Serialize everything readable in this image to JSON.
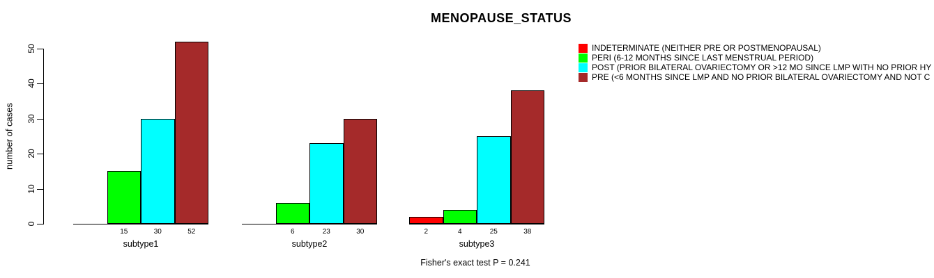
{
  "title": "MENOPAUSE_STATUS",
  "y_axis_label": "number of cases",
  "footer_annotation": "Fisher's exact test P = 0.241",
  "legend": {
    "position": "right",
    "items": [
      {
        "label": "INDETERMINATE (NEITHER PRE OR POSTMENOPAUSAL)",
        "color": "#ff0000"
      },
      {
        "label": "PERI (6-12 MONTHS SINCE LAST MENSTRUAL PERIOD)",
        "color": "#00ff00"
      },
      {
        "label": "POST (PRIOR BILATERAL OVARIECTOMY OR >12 MO SINCE LMP WITH NO PRIOR HY",
        "color": "#00ffff"
      },
      {
        "label": "PRE (<6 MONTHS SINCE LMP AND NO PRIOR BILATERAL OVARIECTOMY AND NOT C",
        "color": "#a52a2a"
      }
    ]
  },
  "chart_data": {
    "type": "bar",
    "title": "MENOPAUSE_STATUS",
    "xlabel": "",
    "ylabel": "number of cases",
    "ylim": [
      0,
      50
    ],
    "yticks": [
      0,
      10,
      20,
      30,
      40,
      50
    ],
    "grid": false,
    "legend_position": "right",
    "categories": [
      "subtype1",
      "subtype2",
      "subtype3"
    ],
    "series": [
      {
        "name": "INDETERMINATE (NEITHER PRE OR POSTMENOPAUSAL)",
        "color": "#ff0000",
        "values": [
          0,
          0,
          2
        ]
      },
      {
        "name": "PERI (6-12 MONTHS SINCE LAST MENSTRUAL PERIOD)",
        "color": "#00ff00",
        "values": [
          15,
          6,
          4
        ]
      },
      {
        "name": "POST (PRIOR BILATERAL OVARIECTOMY OR >12 MO SINCE LMP WITH NO PRIOR HY",
        "color": "#00ffff",
        "values": [
          30,
          23,
          25
        ]
      },
      {
        "name": "PRE (<6 MONTHS SINCE LMP AND NO PRIOR BILATERAL OVARIECTOMY AND NOT C",
        "color": "#a52a2a",
        "values": [
          52,
          30,
          38
        ]
      }
    ],
    "bar_value_labels_shown_only_when_positive": true,
    "annotation": "Fisher's exact test P = 0.241"
  }
}
